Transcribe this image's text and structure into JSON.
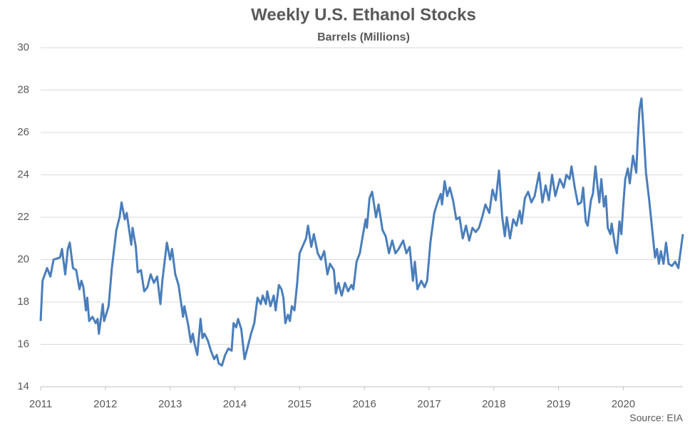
{
  "chart_data": {
    "type": "line",
    "title": "Weekly U.S. Ethanol Stocks",
    "subtitle": "Barrels (Millions)",
    "annotation": "Source: EIA",
    "color": "#4a7ebb",
    "grid": true,
    "xlim": [
      2011,
      2020.92
    ],
    "xticks": [
      2011,
      2012,
      2013,
      2014,
      2015,
      2016,
      2017,
      2018,
      2019,
      2020
    ],
    "ylim": [
      14,
      30
    ],
    "yticks": [
      14,
      16,
      18,
      20,
      22,
      24,
      26,
      28,
      30
    ],
    "x": [
      2011.0,
      2011.03,
      2011.1,
      2011.15,
      2011.2,
      2011.3,
      2011.33,
      2011.38,
      2011.42,
      2011.45,
      2011.5,
      2011.55,
      2011.6,
      2011.63,
      2011.66,
      2011.7,
      2011.72,
      2011.75,
      2011.8,
      2011.85,
      2011.88,
      2011.9,
      2011.93,
      2011.96,
      2011.98,
      2012.05,
      2012.1,
      2012.17,
      2012.22,
      2012.25,
      2012.3,
      2012.33,
      2012.4,
      2012.42,
      2012.47,
      2012.5,
      2012.55,
      2012.6,
      2012.65,
      2012.7,
      2012.75,
      2012.8,
      2012.85,
      2012.88,
      2012.95,
      2013.0,
      2013.03,
      2013.08,
      2013.13,
      2013.2,
      2013.22,
      2013.28,
      2013.32,
      2013.35,
      2013.38,
      2013.42,
      2013.47,
      2013.5,
      2013.53,
      2013.58,
      2013.63,
      2013.68,
      2013.72,
      2013.75,
      2013.8,
      2013.85,
      2013.9,
      2013.95,
      2013.98,
      2014.02,
      2014.05,
      2014.1,
      2014.15,
      2014.2,
      2014.25,
      2014.3,
      2014.35,
      2014.4,
      2014.43,
      2014.48,
      2014.5,
      2014.55,
      2014.6,
      2014.63,
      2014.68,
      2014.72,
      2014.75,
      2014.78,
      2014.82,
      2014.85,
      2014.88,
      2014.92,
      2014.96,
      2015.0,
      2015.1,
      2015.13,
      2015.18,
      2015.22,
      2015.28,
      2015.33,
      2015.38,
      2015.43,
      2015.47,
      2015.53,
      2015.56,
      2015.6,
      2015.65,
      2015.7,
      2015.75,
      2015.8,
      2015.83,
      2015.88,
      2015.93,
      2015.98,
      2016.02,
      2016.04,
      2016.08,
      2016.12,
      2016.18,
      2016.22,
      2016.28,
      2016.33,
      2016.38,
      2016.43,
      2016.48,
      2016.53,
      2016.6,
      2016.65,
      2016.7,
      2016.75,
      2016.78,
      2016.82,
      2016.88,
      2016.93,
      2016.97,
      2017.02,
      2017.08,
      2017.13,
      2017.18,
      2017.2,
      2017.24,
      2017.28,
      2017.32,
      2017.37,
      2017.42,
      2017.47,
      2017.52,
      2017.57,
      2017.62,
      2017.67,
      2017.72,
      2017.77,
      2017.82,
      2017.87,
      2017.93,
      2017.98,
      2018.03,
      2018.08,
      2018.13,
      2018.17,
      2018.2,
      2018.25,
      2018.3,
      2018.35,
      2018.4,
      2018.43,
      2018.48,
      2018.53,
      2018.58,
      2018.63,
      2018.7,
      2018.75,
      2018.8,
      2018.85,
      2018.9,
      2018.95,
      2019.02,
      2019.08,
      2019.12,
      2019.17,
      2019.2,
      2019.25,
      2019.3,
      2019.35,
      2019.38,
      2019.42,
      2019.45,
      2019.5,
      2019.53,
      2019.57,
      2019.6,
      2019.63,
      2019.66,
      2019.7,
      2019.73,
      2019.76,
      2019.8,
      2019.82,
      2019.87,
      2019.9,
      2019.94,
      2019.97,
      2020.0,
      2020.03,
      2020.07,
      2020.1,
      2020.15,
      2020.18,
      2020.2,
      2020.22,
      2020.25,
      2020.28,
      2020.31,
      2020.35,
      2020.4,
      2020.45,
      2020.49,
      2020.52,
      2020.55,
      2020.58,
      2020.62,
      2020.66,
      2020.7,
      2020.75,
      2020.8,
      2020.85,
      2020.88,
      2020.92
    ],
    "values": [
      17.1,
      19.0,
      19.6,
      19.2,
      20.0,
      20.1,
      20.5,
      19.3,
      20.5,
      20.8,
      19.6,
      19.5,
      18.6,
      19.0,
      18.7,
      17.6,
      18.2,
      17.1,
      17.3,
      17.0,
      17.2,
      16.5,
      17.2,
      17.9,
      17.1,
      17.8,
      19.6,
      21.4,
      22.0,
      22.7,
      21.9,
      22.2,
      20.7,
      21.5,
      20.6,
      19.4,
      19.5,
      18.5,
      18.7,
      19.3,
      18.9,
      19.2,
      17.9,
      19.0,
      20.8,
      20.0,
      20.5,
      19.3,
      18.8,
      17.3,
      17.8,
      16.9,
      16.1,
      16.5,
      16.0,
      15.5,
      17.2,
      16.3,
      16.5,
      16.2,
      15.7,
      15.3,
      15.5,
      15.1,
      15.0,
      15.5,
      15.8,
      15.7,
      17.0,
      16.8,
      17.2,
      16.7,
      15.3,
      15.9,
      16.5,
      17.0,
      18.2,
      17.9,
      18.3,
      17.9,
      18.5,
      17.8,
      18.3,
      17.6,
      18.8,
      18.6,
      18.2,
      17.0,
      17.4,
      17.1,
      17.8,
      17.6,
      18.8,
      20.3,
      21.0,
      21.6,
      20.6,
      21.2,
      20.3,
      20.0,
      20.4,
      19.3,
      19.8,
      19.5,
      18.4,
      18.9,
      18.3,
      18.9,
      18.5,
      18.8,
      18.6,
      19.9,
      20.3,
      21.2,
      21.9,
      21.5,
      22.9,
      23.2,
      22.0,
      22.6,
      21.4,
      21.1,
      20.3,
      20.9,
      20.3,
      20.5,
      20.9,
      20.3,
      20.6,
      19.0,
      19.9,
      18.6,
      19.0,
      18.7,
      19.0,
      20.8,
      22.2,
      22.7,
      23.1,
      22.6,
      23.7,
      23.0,
      23.4,
      22.8,
      21.9,
      22.0,
      21.0,
      21.6,
      20.9,
      21.5,
      21.3,
      21.5,
      22.0,
      22.6,
      22.2,
      23.3,
      22.8,
      24.2,
      22.0,
      21.1,
      22.0,
      21.0,
      21.9,
      21.6,
      22.3,
      21.7,
      22.9,
      23.2,
      22.7,
      23.0,
      24.1,
      22.7,
      23.5,
      22.8,
      24.0,
      23.0,
      23.8,
      23.4,
      24.0,
      23.8,
      24.4,
      23.4,
      22.6,
      22.7,
      23.4,
      21.8,
      21.6,
      22.8,
      23.1,
      24.4,
      23.5,
      22.7,
      23.8,
      22.5,
      23.0,
      21.5,
      21.2,
      21.7,
      20.7,
      20.3,
      21.8,
      21.2,
      22.6,
      23.8,
      24.3,
      23.6,
      24.9,
      24.4,
      24.1,
      25.5,
      27.1,
      27.6,
      26.2,
      24.1,
      22.8,
      21.3,
      20.1,
      20.5,
      19.8,
      20.4,
      19.8,
      20.8,
      19.8,
      19.7,
      19.9,
      19.6,
      20.3,
      21.2
    ]
  }
}
